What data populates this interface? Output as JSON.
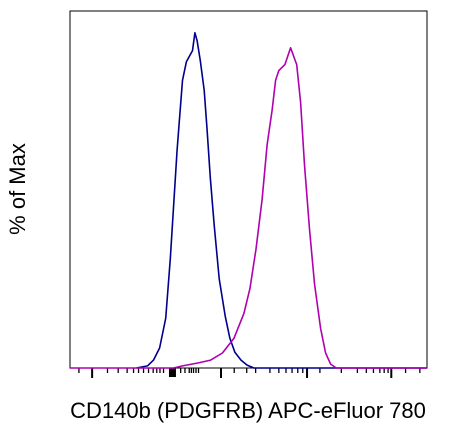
{
  "chart_data": {
    "type": "line",
    "title": "",
    "xlabel": "CD140b (PDGFRB) APC-eFluor 780",
    "ylabel": "% of Max",
    "xlim": [
      0,
      100
    ],
    "ylim": [
      0,
      100
    ],
    "x_scale": "logicle",
    "tick_labels_shown": false,
    "grid": false,
    "legend": "none",
    "series": [
      {
        "color": "#00008b",
        "x": [
          18.6,
          21.7,
          23.4,
          25.1,
          26.8,
          28.1,
          30.0,
          31.5,
          32.6,
          33.7,
          34.3,
          35.0,
          35.6,
          36.5,
          37.6,
          38.4,
          39.3,
          40.4,
          41.8,
          43.5,
          44.8,
          46.2,
          47.9,
          49.6,
          51.5,
          100
        ],
        "y": [
          0,
          0.6,
          2.2,
          5.6,
          13.9,
          30.6,
          61.1,
          80.6,
          85.8,
          87.8,
          88.9,
          93.9,
          91.7,
          86.1,
          77.8,
          66.7,
          53.3,
          40.0,
          25.0,
          14.4,
          8.3,
          4.4,
          2.2,
          0.8,
          0,
          0
        ]
      },
      {
        "color": "#b000b0",
        "x": [
          0,
          29.0,
          31.5,
          35.8,
          39.4,
          42.7,
          45.9,
          48.7,
          50.4,
          52.1,
          53.8,
          55.2,
          56.6,
          57.6,
          58.5,
          60.2,
          61.8,
          63.5,
          64.6,
          65.7,
          67.1,
          68.5,
          70.2,
          71.6,
          73.0,
          74.6,
          100
        ],
        "y": [
          0,
          0,
          0.6,
          1.4,
          2.2,
          4.2,
          8.3,
          15.3,
          22.2,
          33.3,
          47.2,
          62.5,
          72.2,
          80.6,
          83.3,
          85.0,
          89.7,
          85.0,
          74.4,
          56.9,
          38.9,
          23.6,
          11.1,
          4.2,
          1.1,
          0,
          0
        ]
      }
    ]
  }
}
